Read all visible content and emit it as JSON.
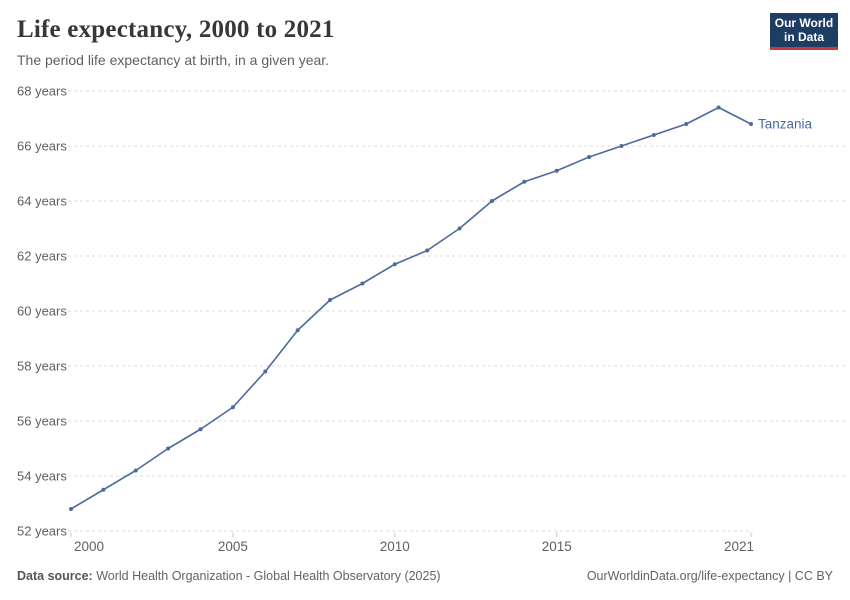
{
  "header": {
    "title": "Life expectancy, 2000 to 2021",
    "subtitle": "The period life expectancy at birth, in a given year."
  },
  "logo": {
    "line1": "Our World",
    "line2": "in Data",
    "bg_color": "#1d3d63",
    "accent_color": "#c73a42"
  },
  "chart_data": {
    "type": "line",
    "title": "Life expectancy, 2000 to 2021",
    "x": [
      2000,
      2001,
      2002,
      2003,
      2004,
      2005,
      2006,
      2007,
      2008,
      2009,
      2010,
      2011,
      2012,
      2013,
      2014,
      2015,
      2016,
      2017,
      2018,
      2019,
      2020,
      2021
    ],
    "series": [
      {
        "name": "Tanzania",
        "color": "#4c6a9c",
        "values": [
          52.8,
          53.5,
          54.2,
          55.0,
          55.7,
          56.5,
          57.8,
          59.3,
          60.4,
          61.0,
          61.7,
          62.2,
          63.0,
          64.0,
          64.7,
          65.1,
          65.6,
          66.0,
          66.4,
          66.8,
          67.4,
          66.8
        ]
      }
    ],
    "xlim": [
      2000,
      2021
    ],
    "ylim": [
      52,
      68
    ],
    "x_ticks": [
      2000,
      2005,
      2010,
      2015,
      2021
    ],
    "y_ticks": [
      52,
      54,
      56,
      58,
      60,
      62,
      64,
      66,
      68
    ],
    "y_tick_suffix": " years",
    "grid": "horizontal dashed",
    "grid_color": "#dcdcdc",
    "axis_text_color": "#606060",
    "legend_position": "end-of-line label"
  },
  "footer": {
    "source_label": "Data source:",
    "source_text": " World Health Organization - Global Health Observatory (2025)",
    "right_text": "OurWorldinData.org/life-expectancy | CC BY"
  }
}
